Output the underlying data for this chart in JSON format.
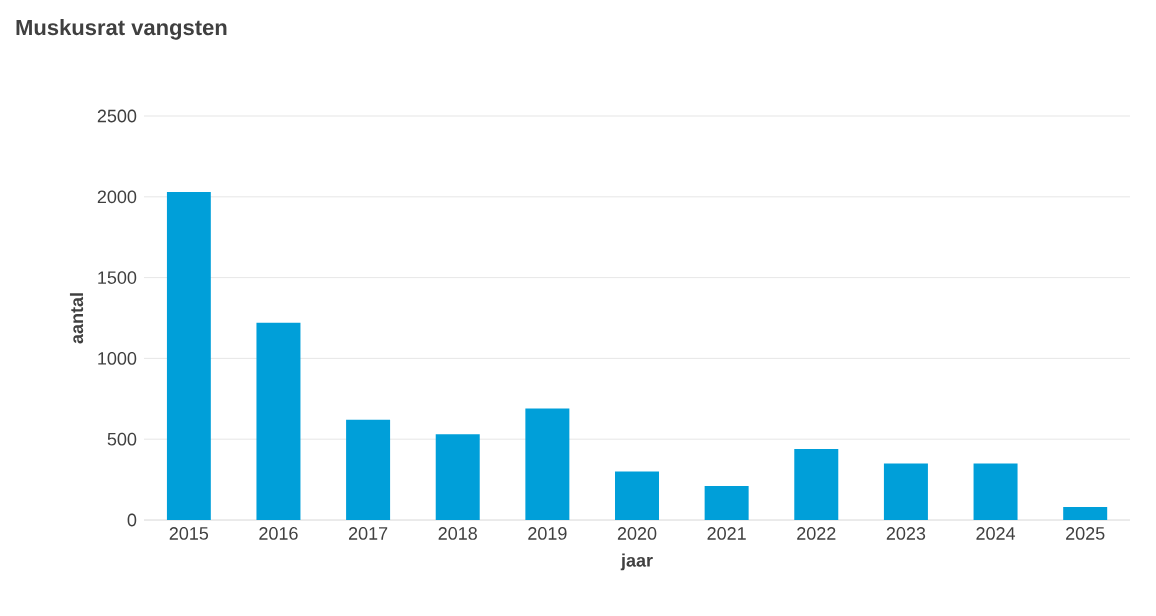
{
  "chart_data": {
    "type": "bar",
    "title": "Muskusrat vangsten",
    "xlabel": "jaar",
    "ylabel": "aantal",
    "categories": [
      "2015",
      "2016",
      "2017",
      "2018",
      "2019",
      "2020",
      "2021",
      "2022",
      "2023",
      "2024",
      "2025"
    ],
    "values": [
      2030,
      1220,
      620,
      530,
      690,
      300,
      210,
      440,
      350,
      350,
      80
    ],
    "color": "#009fd9",
    "ylim": [
      0,
      2500
    ],
    "yticks": [
      0,
      500,
      1000,
      1500,
      2000,
      2500
    ],
    "grid": "y"
  }
}
